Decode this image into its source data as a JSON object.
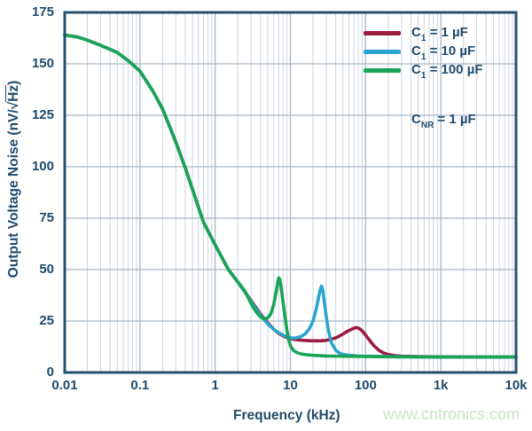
{
  "colors": {
    "navy": "#1e4a6d",
    "frame": "#24506e",
    "grid_minor": "#cdd5de",
    "grid_major": "#a9b6c4",
    "watermark": "#c9e5c5",
    "background": "#ffffff"
  },
  "y_axis": {
    "title_prefix": "Output Voltage Noise (nV/√",
    "title_overline": "Hz",
    "title_suffix": ")",
    "ticks": [
      "0",
      "25",
      "50",
      "75",
      "100",
      "125",
      "150",
      "175"
    ]
  },
  "x_axis": {
    "title": "Frequency (kHz)",
    "ticks": [
      "0.01",
      "0.1",
      "1",
      "10",
      "100",
      "1k",
      "10k"
    ]
  },
  "legend": {
    "entries": [
      {
        "base": "C",
        "sub": "1",
        "rest": " = 1 µF"
      },
      {
        "base": "C",
        "sub": "1",
        "rest": " = 10 µF"
      },
      {
        "base": "C",
        "sub": "1",
        "rest": " = 100 µF"
      }
    ],
    "annotation": {
      "base": "C",
      "sub": "NR",
      "rest": " = 1 µF"
    }
  },
  "watermark": "www.cntronics.com",
  "chart_data": {
    "type": "line",
    "title": "",
    "xlabel": "Frequency (kHz)",
    "ylabel": "Output Voltage Noise (nV/√Hz)",
    "x_scale": "log",
    "xlim": [
      0.01,
      10000
    ],
    "ylim": [
      0,
      175
    ],
    "y_tick_step": 25,
    "x_ticks": [
      "0.01",
      "0.1",
      "1",
      "10",
      "100",
      "1k",
      "10k"
    ],
    "grid": true,
    "legend_position": "top-right",
    "annotation": "CNR = 1 µF",
    "series": [
      {
        "name": "C1 = 1 µF",
        "color": "#9c1b41",
        "points": [
          [
            0.01,
            164
          ],
          [
            0.015,
            163
          ],
          [
            0.02,
            161.5
          ],
          [
            0.03,
            159
          ],
          [
            0.05,
            155.5
          ],
          [
            0.07,
            151.5
          ],
          [
            0.1,
            146.5
          ],
          [
            0.15,
            136.5
          ],
          [
            0.2,
            128
          ],
          [
            0.3,
            112
          ],
          [
            0.4,
            99.5
          ],
          [
            0.5,
            89
          ],
          [
            0.7,
            73
          ],
          [
            1,
            62
          ],
          [
            1.5,
            50
          ],
          [
            2,
            44
          ],
          [
            2.5,
            39
          ],
          [
            3,
            35
          ],
          [
            3.5,
            31.5
          ],
          [
            4,
            28.5
          ],
          [
            5,
            24
          ],
          [
            6,
            21
          ],
          [
            7,
            19
          ],
          [
            8,
            17.8
          ],
          [
            9,
            17
          ],
          [
            10,
            16.4
          ],
          [
            12,
            15.9
          ],
          [
            15,
            15.6
          ],
          [
            20,
            15.4
          ],
          [
            25,
            15.4
          ],
          [
            30,
            15.6
          ],
          [
            35,
            16.1
          ],
          [
            40,
            16.8
          ],
          [
            45,
            17.7
          ],
          [
            50,
            18.7
          ],
          [
            55,
            19.6
          ],
          [
            60,
            20.4
          ],
          [
            65,
            21
          ],
          [
            70,
            21.5
          ],
          [
            75,
            21.8
          ],
          [
            80,
            21.6
          ],
          [
            85,
            21
          ],
          [
            90,
            20.2
          ],
          [
            100,
            18.2
          ],
          [
            110,
            16.2
          ],
          [
            120,
            14.4
          ],
          [
            130,
            12.9
          ],
          [
            150,
            10.8
          ],
          [
            170,
            9.6
          ],
          [
            200,
            8.7
          ],
          [
            250,
            8.1
          ],
          [
            300,
            7.9
          ],
          [
            500,
            7.7
          ],
          [
            1000,
            7.6
          ],
          [
            3000,
            7.5
          ],
          [
            10000,
            7.5
          ]
        ]
      },
      {
        "name": "C1 = 10 µF",
        "color": "#2aa5cf",
        "points": [
          [
            0.01,
            164
          ],
          [
            0.015,
            163
          ],
          [
            0.02,
            161.5
          ],
          [
            0.03,
            159
          ],
          [
            0.05,
            155.5
          ],
          [
            0.07,
            151.5
          ],
          [
            0.1,
            146.5
          ],
          [
            0.15,
            136.5
          ],
          [
            0.2,
            128
          ],
          [
            0.3,
            112
          ],
          [
            0.4,
            99.5
          ],
          [
            0.5,
            89
          ],
          [
            0.7,
            73
          ],
          [
            1,
            62
          ],
          [
            1.5,
            50
          ],
          [
            2,
            44
          ],
          [
            2.5,
            39
          ],
          [
            3,
            34.5
          ],
          [
            3.5,
            31
          ],
          [
            4,
            28
          ],
          [
            5,
            23.5
          ],
          [
            6,
            21
          ],
          [
            7,
            19.3
          ],
          [
            8,
            18.2
          ],
          [
            9,
            17.4
          ],
          [
            10,
            16.9
          ],
          [
            11,
            16.7
          ],
          [
            12,
            16.8
          ],
          [
            14,
            17.6
          ],
          [
            16,
            19
          ],
          [
            18,
            21.5
          ],
          [
            20,
            25
          ],
          [
            22,
            30.5
          ],
          [
            24,
            37.5
          ],
          [
            25,
            40.5
          ],
          [
            26,
            42
          ],
          [
            27,
            40
          ],
          [
            28,
            35.5
          ],
          [
            30,
            27
          ],
          [
            32,
            20.5
          ],
          [
            35,
            14.5
          ],
          [
            40,
            10.8
          ],
          [
            45,
            9.4
          ],
          [
            50,
            8.8
          ],
          [
            60,
            8.3
          ],
          [
            80,
            8
          ],
          [
            100,
            7.9
          ],
          [
            200,
            7.7
          ],
          [
            500,
            7.6
          ],
          [
            1000,
            7.5
          ],
          [
            10000,
            7.5
          ]
        ]
      },
      {
        "name": "C1 = 100 µF",
        "color": "#18a355",
        "points": [
          [
            0.01,
            164
          ],
          [
            0.015,
            163
          ],
          [
            0.02,
            161.5
          ],
          [
            0.03,
            159
          ],
          [
            0.05,
            155.5
          ],
          [
            0.07,
            151.5
          ],
          [
            0.1,
            146.5
          ],
          [
            0.15,
            136.5
          ],
          [
            0.2,
            128
          ],
          [
            0.3,
            112
          ],
          [
            0.4,
            99.5
          ],
          [
            0.5,
            89
          ],
          [
            0.7,
            73
          ],
          [
            1,
            62
          ],
          [
            1.5,
            50
          ],
          [
            2,
            44
          ],
          [
            2.5,
            39.5
          ],
          [
            3,
            33.5
          ],
          [
            3.5,
            29.5
          ],
          [
            4,
            27
          ],
          [
            4.5,
            26
          ],
          [
            5,
            26.5
          ],
          [
            5.5,
            28.5
          ],
          [
            6,
            33
          ],
          [
            6.5,
            39.5
          ],
          [
            6.8,
            44
          ],
          [
            7,
            46
          ],
          [
            7.2,
            45.5
          ],
          [
            7.5,
            42
          ],
          [
            8,
            34
          ],
          [
            8.5,
            27
          ],
          [
            9,
            20.5
          ],
          [
            9.5,
            16
          ],
          [
            10,
            13
          ],
          [
            11,
            10.7
          ],
          [
            12,
            9.8
          ],
          [
            14,
            9
          ],
          [
            16,
            8.6
          ],
          [
            20,
            8.3
          ],
          [
            30,
            8
          ],
          [
            50,
            7.9
          ],
          [
            100,
            7.8
          ],
          [
            300,
            7.6
          ],
          [
            1000,
            7.5
          ],
          [
            3000,
            7.5
          ],
          [
            10000,
            7.5
          ]
        ]
      }
    ]
  }
}
